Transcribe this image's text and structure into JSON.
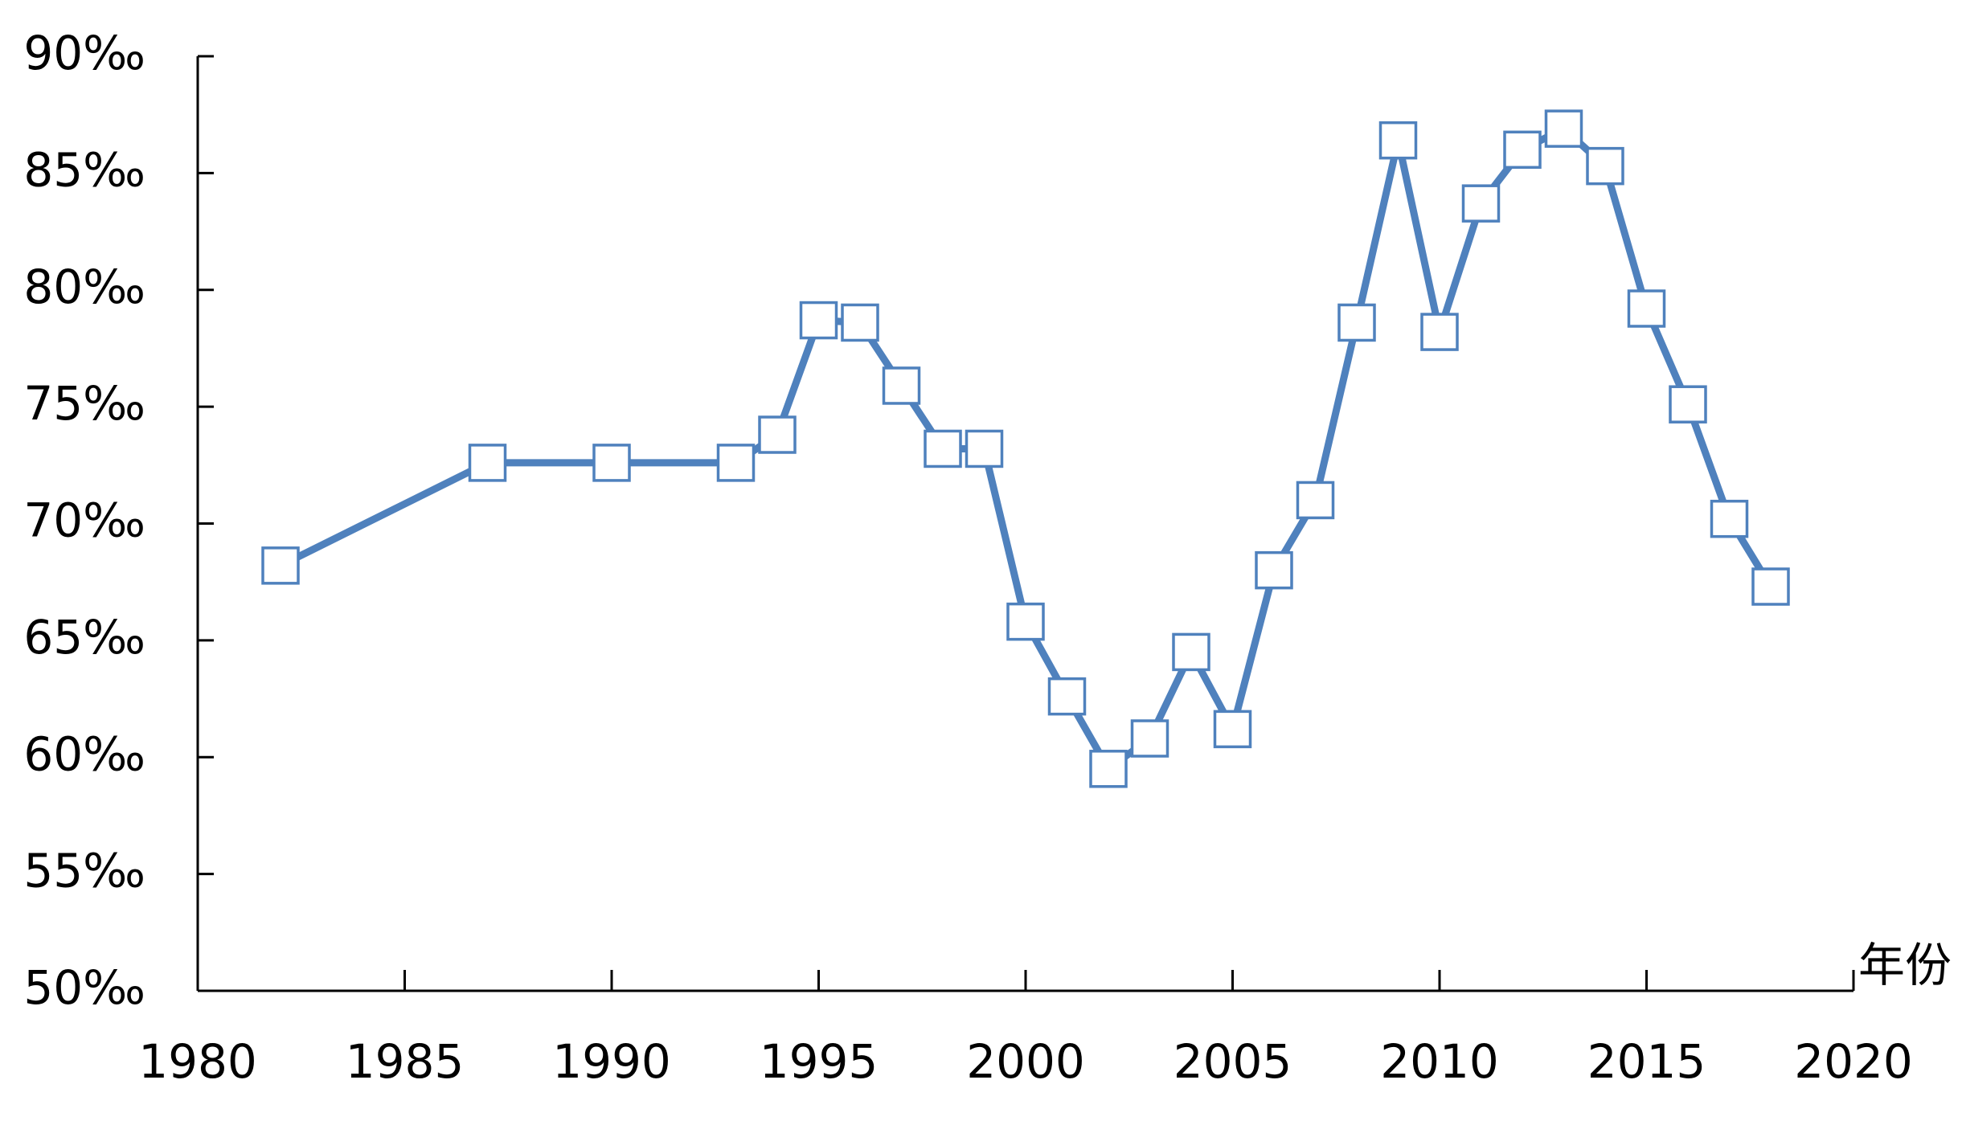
{
  "chart_data": {
    "type": "line",
    "x_label": "年份",
    "x": [
      1982,
      1987,
      1990,
      1993,
      1994,
      1995,
      1996,
      1997,
      1998,
      1999,
      2000,
      2001,
      2002,
      2003,
      2004,
      2005,
      2006,
      2007,
      2008,
      2009,
      2010,
      2011,
      2012,
      2013,
      2014,
      2015,
      2016,
      2017,
      2018
    ],
    "series": [
      {
        "color": "#4f81bd",
        "values": [
          68.2,
          72.6,
          72.6,
          72.6,
          73.8,
          78.7,
          78.6,
          75.9,
          73.2,
          73.2,
          65.8,
          62.6,
          59.5,
          60.8,
          64.5,
          61.2,
          68.0,
          71.0,
          78.6,
          86.4,
          78.2,
          83.7,
          86.0,
          86.9,
          85.3,
          79.2,
          75.1,
          70.2,
          67.3
        ]
      }
    ],
    "xlim": [
      1980,
      2020
    ],
    "xticks": [
      1980,
      1985,
      1990,
      1995,
      2000,
      2005,
      2010,
      2015,
      2020
    ],
    "ylim": [
      50,
      90
    ],
    "yticks": [
      {
        "value": 50,
        "label": "50‰"
      },
      {
        "value": 55,
        "label": "55‰"
      },
      {
        "value": 60,
        "label": "60‰"
      },
      {
        "value": 65,
        "label": "65‰"
      },
      {
        "value": 70,
        "label": "70‰"
      },
      {
        "value": 75,
        "label": "75‰"
      },
      {
        "value": 80,
        "label": "80‰"
      },
      {
        "value": 85,
        "label": "85‰"
      },
      {
        "value": 90,
        "label": "90‰"
      }
    ],
    "marker": "square",
    "marker_fill": "#ffffff"
  }
}
